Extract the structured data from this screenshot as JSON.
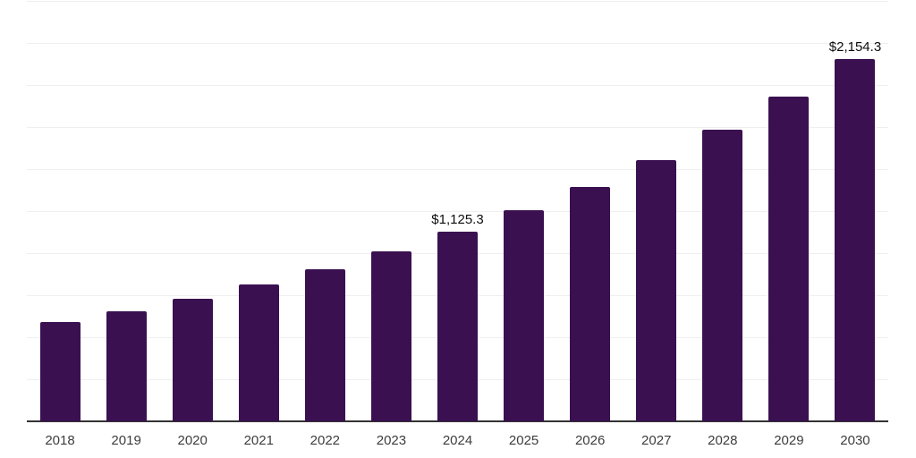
{
  "chart_data": {
    "type": "bar",
    "title": "",
    "xlabel": "",
    "ylabel": "",
    "categories": [
      "2018",
      "2019",
      "2020",
      "2021",
      "2022",
      "2023",
      "2024",
      "2025",
      "2026",
      "2027",
      "2028",
      "2029",
      "2030"
    ],
    "values": [
      590.1,
      652.4,
      727.4,
      812.2,
      903.4,
      1009.5,
      1125.3,
      1253.9,
      1396.2,
      1555.6,
      1735.8,
      1932.1,
      2154.3
    ],
    "data_labels": {
      "2024": "$1,125.3",
      "2030": "$2,154.3"
    },
    "ylim": [
      0,
      2500
    ],
    "gridline_step": 250,
    "grid": "horizontal",
    "legend_position": "none",
    "y_tick_labels_visible": false,
    "colors": {
      "bar": "#3a1050",
      "axis_line": "#333333",
      "gridline": "#efefef",
      "x_tick_label": "#3d3d3d",
      "data_label": "#0d0d0d",
      "background": "#ffffff"
    }
  }
}
